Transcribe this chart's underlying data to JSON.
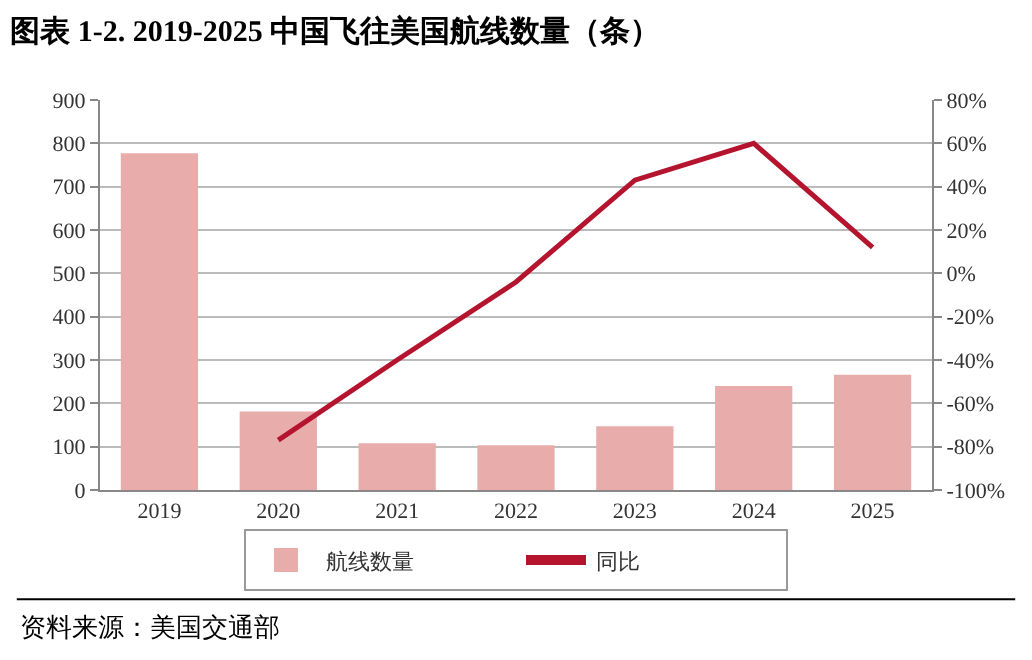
{
  "chart_data": {
    "type": "bar",
    "title": "图表 1-2. 2019-2025 中国飞往美国航线数量（条）",
    "categories": [
      "2019",
      "2020",
      "2021",
      "2022",
      "2023",
      "2024",
      "2025"
    ],
    "series": [
      {
        "name": "航线数量",
        "color": "#e8acab",
        "values": [
          777,
          181,
          108,
          103,
          147,
          240,
          266
        ]
      },
      {
        "name": "同比",
        "type": "line",
        "axis": "y2",
        "color": "#b5142e",
        "values": [
          null,
          -77,
          -40,
          -4,
          43,
          60,
          12
        ]
      }
    ],
    "ylim": [
      0,
      900
    ],
    "yticks": [
      0,
      100,
      200,
      300,
      400,
      500,
      600,
      700,
      800,
      900
    ],
    "y2lim": [
      -100,
      80
    ],
    "y2ticks": [
      {
        "value": -100,
        "label": "-100%"
      },
      {
        "value": -80,
        "label": "-80%"
      },
      {
        "value": -60,
        "label": "-60%"
      },
      {
        "value": -40,
        "label": "-40%"
      },
      {
        "value": -20,
        "label": "-20%"
      },
      {
        "value": 0,
        "label": "0%"
      },
      {
        "value": 20,
        "label": "20%"
      },
      {
        "value": 40,
        "label": "40%"
      },
      {
        "value": 60,
        "label": "60%"
      },
      {
        "value": 80,
        "label": "80%"
      }
    ],
    "grid": "y",
    "legend": "bottom",
    "marker": "none",
    "line_style": "solid",
    "annotations": [
      "资料来源：美国交通部"
    ]
  }
}
